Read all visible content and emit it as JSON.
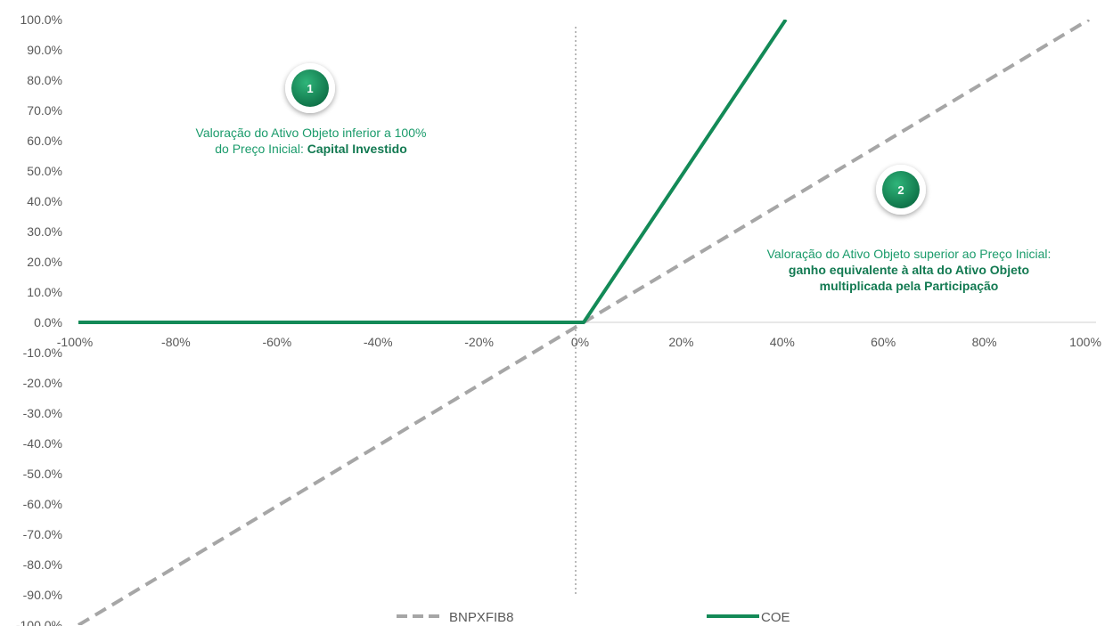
{
  "chart_data": {
    "type": "line",
    "xlim": [
      -100,
      100
    ],
    "ylim": [
      -100,
      100
    ],
    "x_ticks": [
      "-100%",
      "-80%",
      "-60%",
      "-40%",
      "-20%",
      "0%",
      "20%",
      "40%",
      "60%",
      "80%",
      "100%"
    ],
    "y_ticks": [
      "100.0%",
      "90.0%",
      "80.0%",
      "70.0%",
      "60.0%",
      "50.0%",
      "40.0%",
      "30.0%",
      "20.0%",
      "10.0%",
      "0.0%",
      "-10.0%",
      "-20.0%",
      "-30.0%",
      "-40.0%",
      "-50.0%",
      "-60.0%",
      "-70.0%",
      "-80.0%",
      "-90.0%",
      "-100.0%"
    ],
    "series": [
      {
        "name": "BNPXFIB8",
        "style": "dashed",
        "color": "#a6a6a6",
        "x": [
          -100,
          100
        ],
        "y": [
          -100,
          100
        ]
      },
      {
        "name": "COE",
        "style": "solid",
        "color": "#138a57",
        "x": [
          -100,
          0,
          40
        ],
        "y": [
          0,
          0,
          100
        ]
      }
    ],
    "legend_position": "bottom",
    "annotations": [
      {
        "badge": "1",
        "lines": [
          [
            {
              "text": "Valoração do Ativo Objeto inferior a 100%",
              "bold": false
            }
          ],
          [
            {
              "text": "do Preço Inicial: ",
              "bold": false
            },
            {
              "text": "Capital Investido",
              "bold": true
            }
          ]
        ]
      },
      {
        "badge": "2",
        "lines": [
          [
            {
              "text": "Valoração do Ativo Objeto superior ao Preço Inicial:",
              "bold": false
            }
          ],
          [
            {
              "text": "ganho equivalente à alta do Ativo Objeto",
              "bold": true
            }
          ],
          [
            {
              "text": "multiplicada pela Participação",
              "bold": true
            }
          ]
        ]
      }
    ]
  }
}
